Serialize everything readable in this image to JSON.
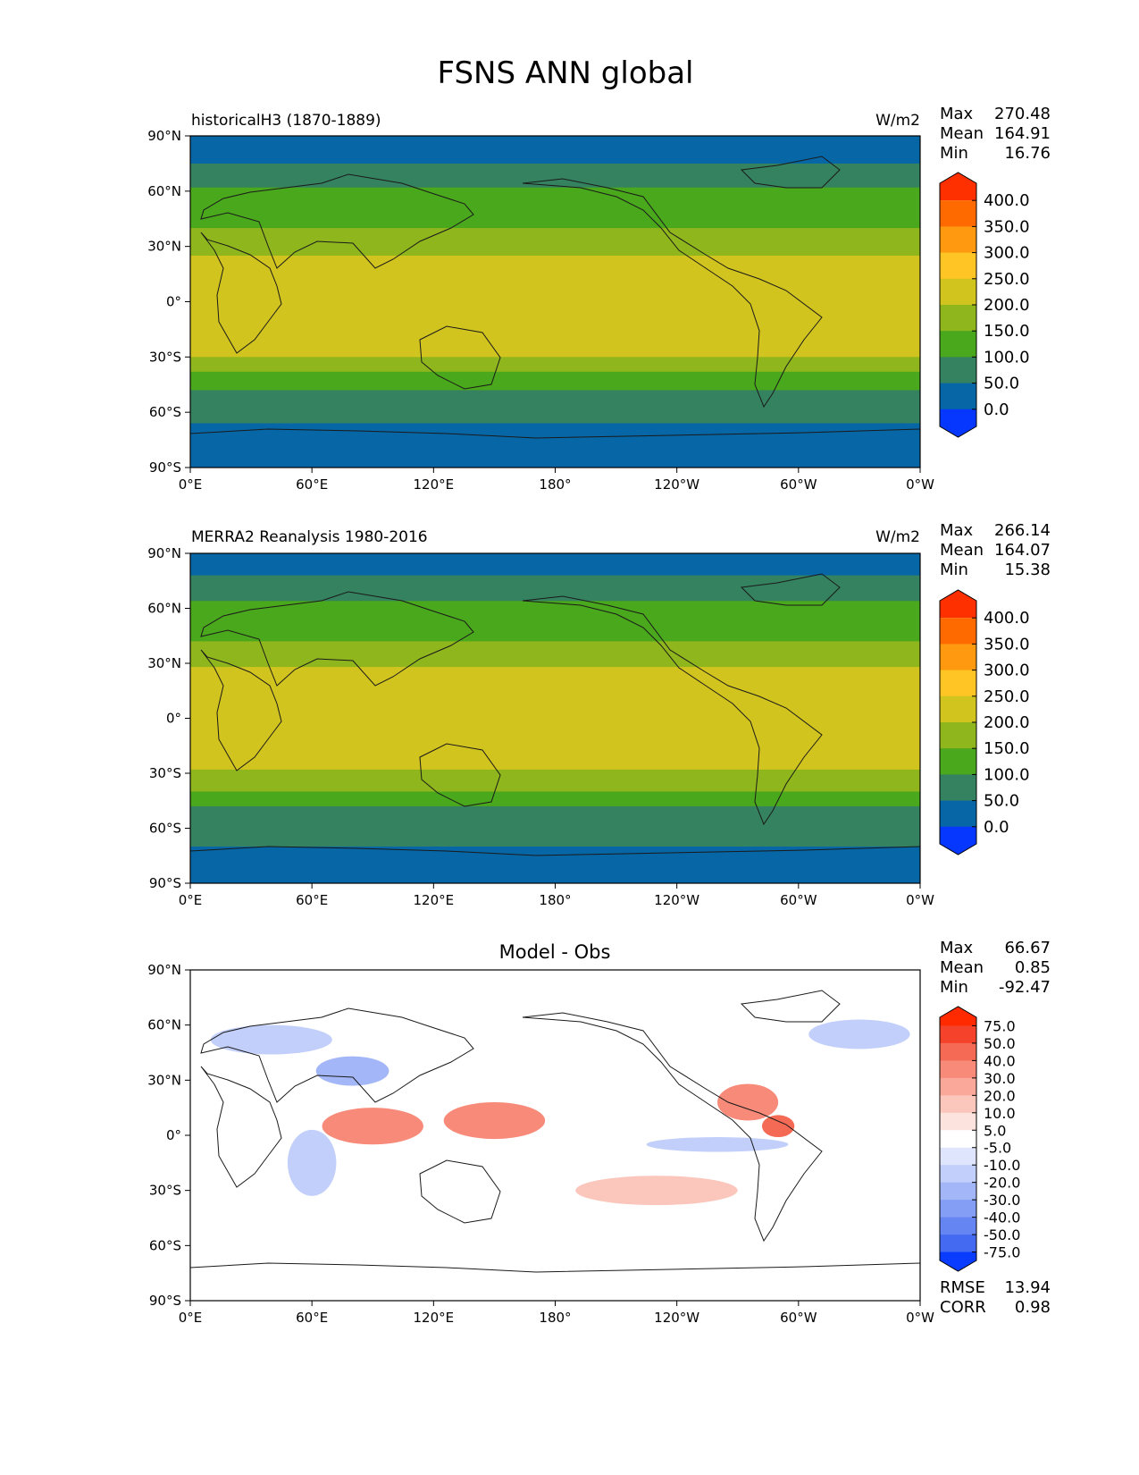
{
  "figure": {
    "title": "FSNS ANN global"
  },
  "chart_data": [
    {
      "type": "heatmap",
      "title": "historicalH3 (1870-1889)",
      "units": "W/m2",
      "xlabel": "",
      "ylabel": "",
      "x_ticks": [
        "0°E",
        "60°E",
        "120°E",
        "180°",
        "120°W",
        "60°W",
        "0°W"
      ],
      "y_ticks": [
        "90°N",
        "60°N",
        "30°N",
        "0°",
        "30°S",
        "60°S",
        "90°S"
      ],
      "xlim": [
        0,
        360
      ],
      "ylim": [
        -90,
        90
      ],
      "stats": [
        {
          "label": "Max",
          "value": "270.48"
        },
        {
          "label": "Mean",
          "value": "164.91"
        },
        {
          "label": "Min",
          "value": "16.76"
        }
      ],
      "colorbar": {
        "labels": [
          "400.0",
          "350.0",
          "300.0",
          "250.0",
          "200.0",
          "150.0",
          "100.0",
          "50.0",
          "0.0"
        ],
        "colors": [
          "#ff3000",
          "#ff6a00",
          "#ff9a10",
          "#ffc524",
          "#d2c41e",
          "#8fb61c",
          "#4aa81c",
          "#358260",
          "#0666a6",
          "#0637ff"
        ]
      },
      "zonal_bands": [
        {
          "from": 90,
          "to": 75,
          "value": 30
        },
        {
          "from": 75,
          "to": 62,
          "value": 75
        },
        {
          "from": 62,
          "to": 50,
          "value": 110
        },
        {
          "from": 50,
          "to": 40,
          "value": 140
        },
        {
          "from": 40,
          "to": 25,
          "value": 175
        },
        {
          "from": 25,
          "to": -30,
          "value": 215
        },
        {
          "from": -30,
          "to": -38,
          "value": 175
        },
        {
          "from": -38,
          "to": -48,
          "value": 130
        },
        {
          "from": -48,
          "to": -66,
          "value": 80
        },
        {
          "from": -66,
          "to": -90,
          "value": 35
        }
      ]
    },
    {
      "type": "heatmap",
      "title": "MERRA2 Reanalysis 1980-2016",
      "units": "W/m2",
      "xlabel": "",
      "ylabel": "",
      "x_ticks": [
        "0°E",
        "60°E",
        "120°E",
        "180°",
        "120°W",
        "60°W",
        "0°W"
      ],
      "y_ticks": [
        "90°N",
        "60°N",
        "30°N",
        "0°",
        "30°S",
        "60°S",
        "90°S"
      ],
      "xlim": [
        0,
        360
      ],
      "ylim": [
        -90,
        90
      ],
      "stats": [
        {
          "label": "Max",
          "value": "266.14"
        },
        {
          "label": "Mean",
          "value": "164.07"
        },
        {
          "label": "Min",
          "value": "15.38"
        }
      ],
      "colorbar": {
        "labels": [
          "400.0",
          "350.0",
          "300.0",
          "250.0",
          "200.0",
          "150.0",
          "100.0",
          "50.0",
          "0.0"
        ],
        "colors": [
          "#ff3000",
          "#ff6a00",
          "#ff9a10",
          "#ffc524",
          "#d2c41e",
          "#8fb61c",
          "#4aa81c",
          "#358260",
          "#0666a6",
          "#0637ff"
        ]
      },
      "zonal_bands": [
        {
          "from": 90,
          "to": 78,
          "value": 30
        },
        {
          "from": 78,
          "to": 64,
          "value": 75
        },
        {
          "from": 64,
          "to": 50,
          "value": 120
        },
        {
          "from": 50,
          "to": 42,
          "value": 145
        },
        {
          "from": 42,
          "to": 28,
          "value": 180
        },
        {
          "from": 28,
          "to": -28,
          "value": 215
        },
        {
          "from": -28,
          "to": -40,
          "value": 170
        },
        {
          "from": -40,
          "to": -48,
          "value": 130
        },
        {
          "from": -48,
          "to": -70,
          "value": 80
        },
        {
          "from": -70,
          "to": -90,
          "value": 35
        }
      ]
    },
    {
      "type": "heatmap",
      "title": "Model - Obs",
      "units": "",
      "xlabel": "",
      "ylabel": "",
      "x_ticks": [
        "0°E",
        "60°E",
        "120°E",
        "180°",
        "120°W",
        "60°W",
        "0°W"
      ],
      "y_ticks": [
        "90°N",
        "60°N",
        "30°N",
        "0°",
        "30°S",
        "60°S",
        "90°S"
      ],
      "xlim": [
        0,
        360
      ],
      "ylim": [
        -90,
        90
      ],
      "stats": [
        {
          "label": "Max",
          "value": "66.67"
        },
        {
          "label": "Mean",
          "value": "0.85"
        },
        {
          "label": "Min",
          "value": "-92.47"
        }
      ],
      "colorbar": {
        "labels": [
          "75.0",
          "50.0",
          "40.0",
          "30.0",
          "20.0",
          "10.0",
          "5.0",
          "-5.0",
          "-10.0",
          "-20.0",
          "-30.0",
          "-40.0",
          "-50.0",
          "-75.0"
        ],
        "colors": [
          "#ff2a00",
          "#f5432b",
          "#f46a55",
          "#f78a78",
          "#f9a899",
          "#fbc6bb",
          "#fde3dd",
          "#ffffff",
          "#dfe5fd",
          "#c2cffb",
          "#a3b6f8",
          "#849df5",
          "#6585f2",
          "#436af0",
          "#0a3cff"
        ]
      },
      "footer_stats": [
        {
          "label": "RMSE",
          "value": "13.94"
        },
        {
          "label": "CORR",
          "value": "0.98"
        }
      ],
      "anomaly_blobs": [
        {
          "lon": 90,
          "lat": 5,
          "rlon": 25,
          "rlat": 10,
          "value": 35
        },
        {
          "lon": 150,
          "lat": 8,
          "rlon": 25,
          "rlat": 10,
          "value": 30
        },
        {
          "lon": 275,
          "lat": 18,
          "rlon": 15,
          "rlat": 10,
          "value": 30
        },
        {
          "lon": 290,
          "lat": 5,
          "rlon": 8,
          "rlat": 6,
          "value": 40
        },
        {
          "lon": 230,
          "lat": -30,
          "rlon": 40,
          "rlat": 8,
          "value": 15
        },
        {
          "lon": 80,
          "lat": 35,
          "rlon": 18,
          "rlat": 8,
          "value": -30
        },
        {
          "lon": 40,
          "lat": 52,
          "rlon": 30,
          "rlat": 8,
          "value": -15
        },
        {
          "lon": 330,
          "lat": 55,
          "rlon": 25,
          "rlat": 8,
          "value": -20
        },
        {
          "lon": 60,
          "lat": -15,
          "rlon": 12,
          "rlat": 18,
          "value": -15
        },
        {
          "lon": 260,
          "lat": -5,
          "rlon": 35,
          "rlat": 4,
          "value": -12
        }
      ]
    }
  ]
}
